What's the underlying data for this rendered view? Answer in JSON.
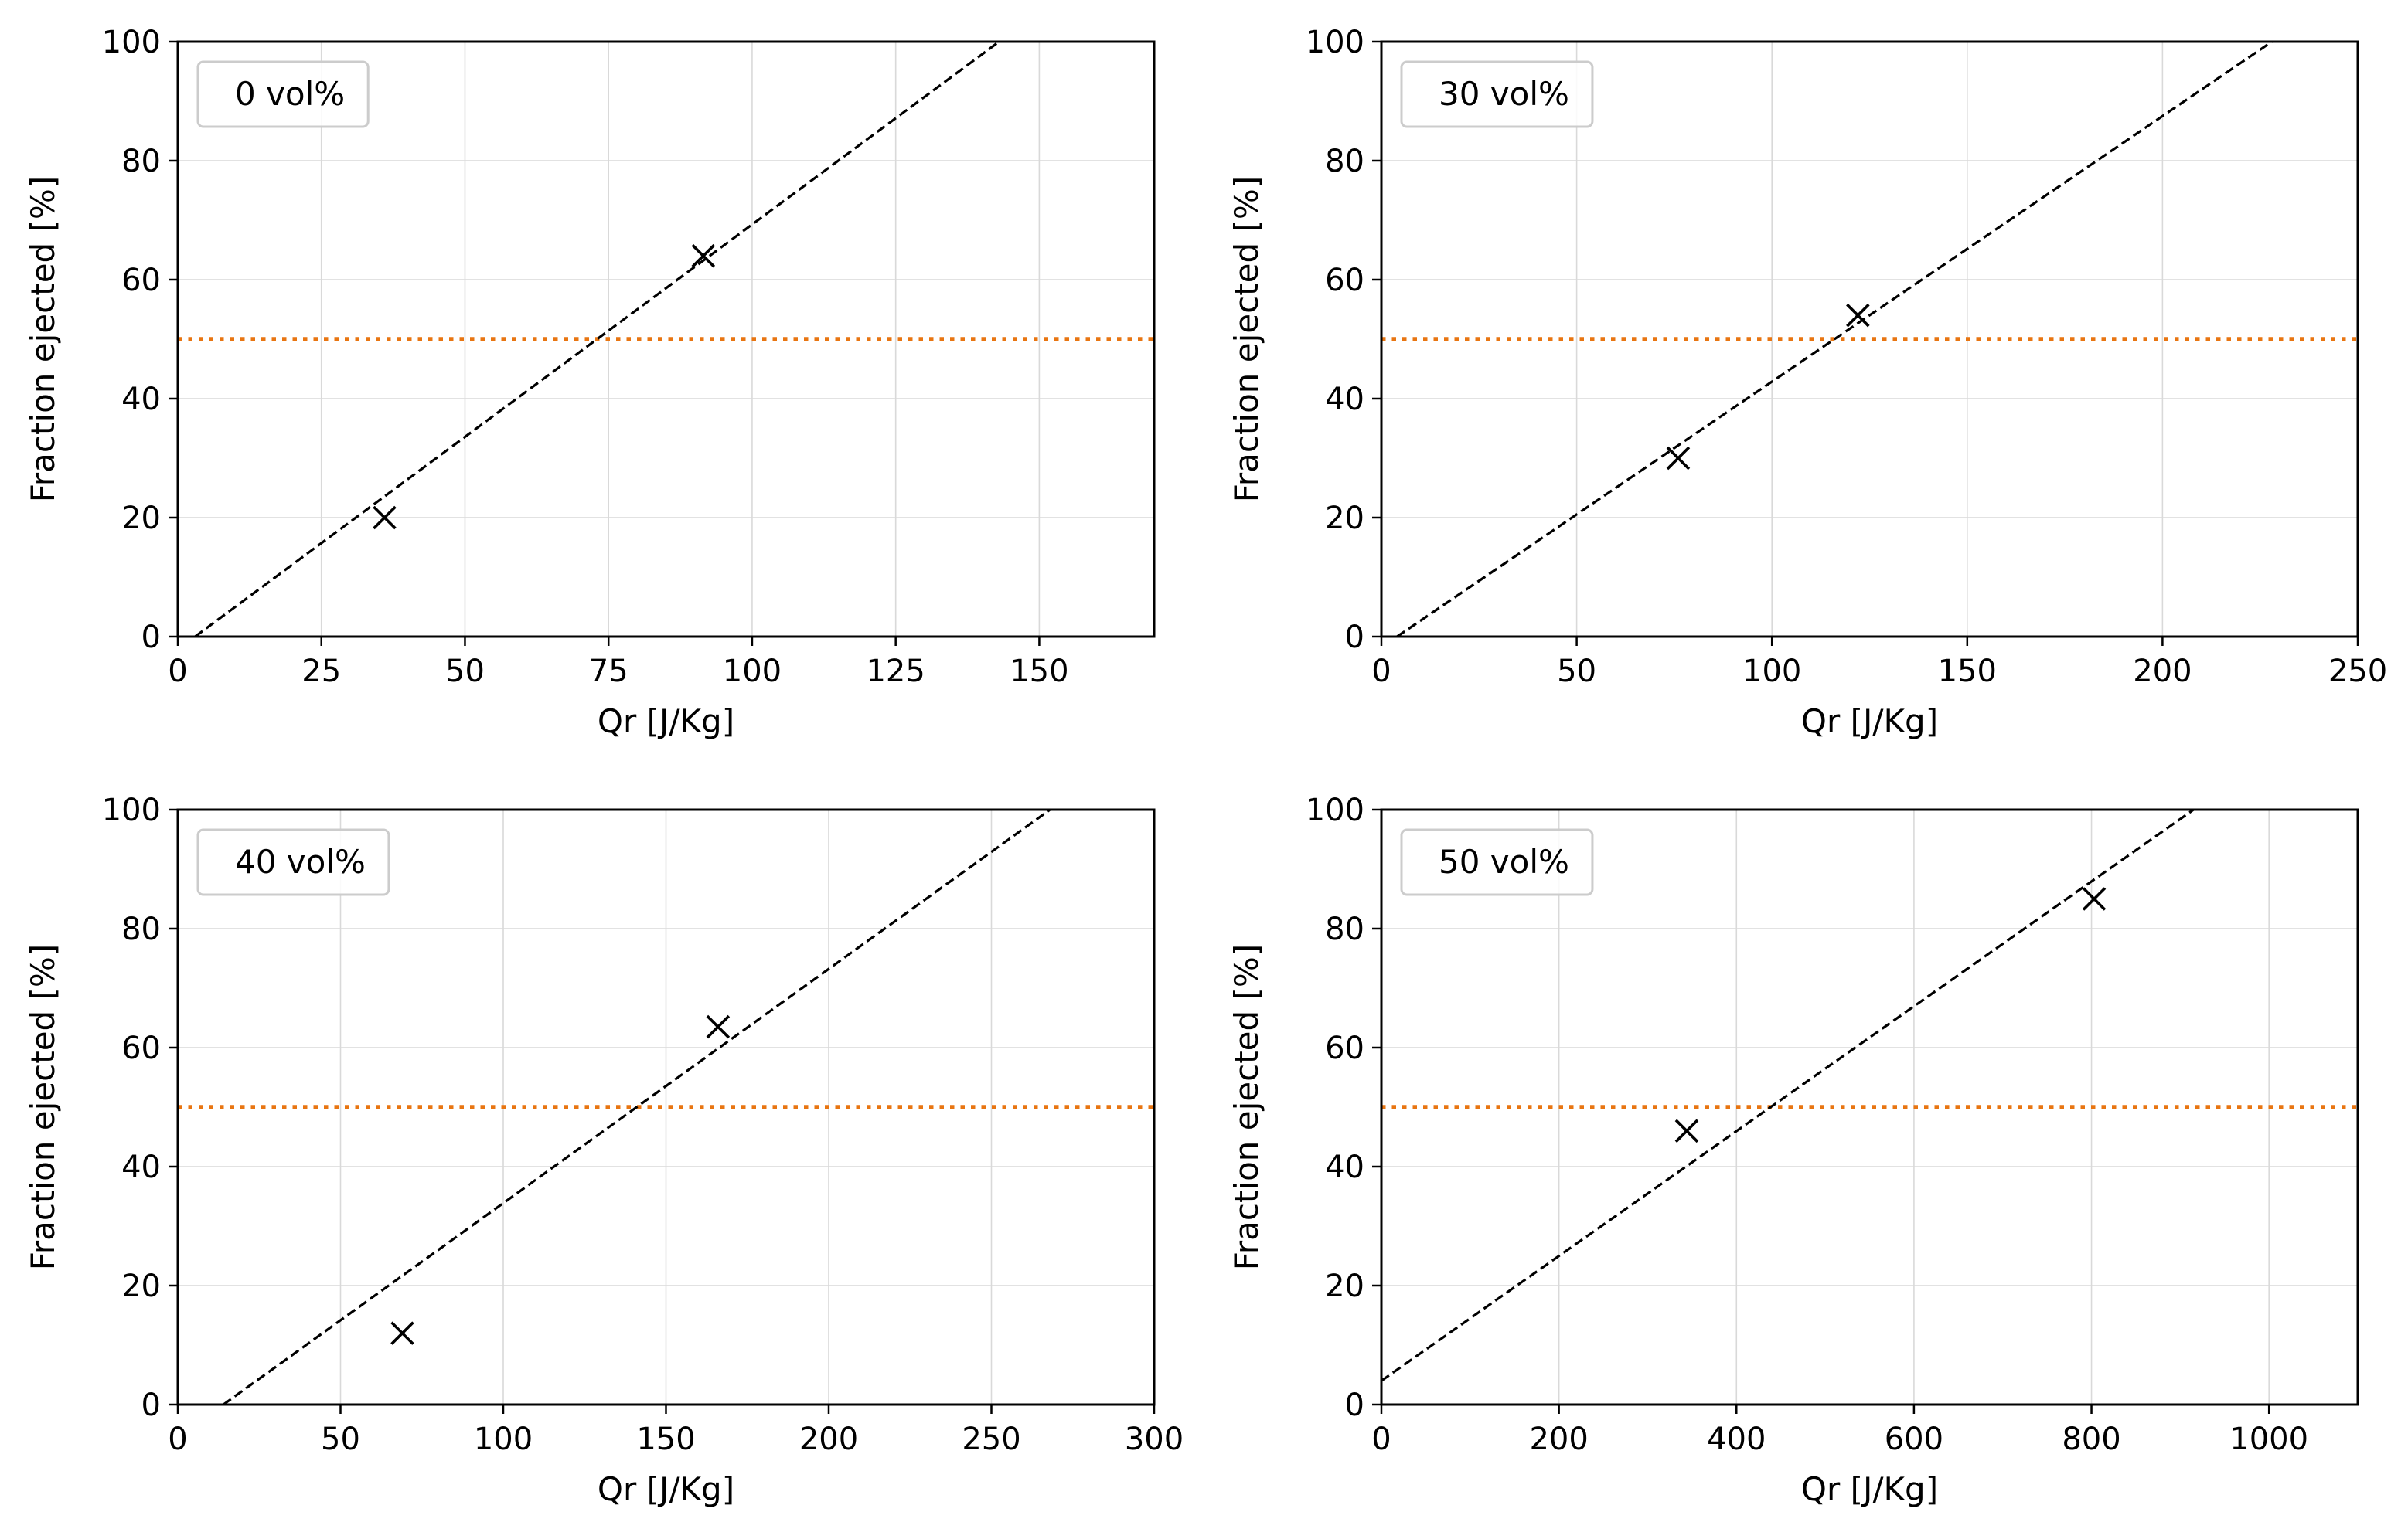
{
  "colors": {
    "fit_line": "#000000",
    "marker": "#000000",
    "threshold": "#e87511",
    "grid": "#d9d9d9",
    "legend_border": "#cccccc",
    "background": "#ffffff"
  },
  "chart_data": [
    {
      "type": "scatter",
      "legend": "0 vol%",
      "xlabel": "Qr [J/Kg]",
      "ylabel": "Fraction ejected [%]",
      "xlim": [
        0,
        170
      ],
      "ylim": [
        0,
        100
      ],
      "xticks": [
        0,
        25,
        50,
        75,
        100,
        125,
        150
      ],
      "yticks": [
        0,
        20,
        40,
        60,
        80,
        100
      ],
      "points": [
        {
          "x": 36,
          "y": 20
        },
        {
          "x": 91.5,
          "y": 64
        }
      ],
      "fit_line": [
        [
          3,
          0
        ],
        [
          143,
          100
        ]
      ],
      "threshold_y": 50,
      "grid": true,
      "legend_position": "top-left"
    },
    {
      "type": "scatter",
      "legend": "30 vol%",
      "xlabel": "Qr [J/Kg]",
      "ylabel": "Fraction ejected [%]",
      "xlim": [
        0,
        250
      ],
      "ylim": [
        0,
        100
      ],
      "xticks": [
        0,
        50,
        100,
        150,
        200,
        250
      ],
      "yticks": [
        0,
        20,
        40,
        60,
        80,
        100
      ],
      "points": [
        {
          "x": 76,
          "y": 30
        },
        {
          "x": 122,
          "y": 54
        }
      ],
      "fit_line": [
        [
          4,
          0
        ],
        [
          228,
          100
        ]
      ],
      "threshold_y": 50,
      "grid": true,
      "legend_position": "top-left"
    },
    {
      "type": "scatter",
      "legend": "40 vol%",
      "xlabel": "Qr [J/Kg]",
      "ylabel": "Fraction ejected [%]",
      "xlim": [
        0,
        300
      ],
      "ylim": [
        0,
        100
      ],
      "xticks": [
        0,
        50,
        100,
        150,
        200,
        250,
        300
      ],
      "yticks": [
        0,
        20,
        40,
        60,
        80,
        100
      ],
      "points": [
        {
          "x": 69,
          "y": 12
        },
        {
          "x": 166,
          "y": 63.5
        }
      ],
      "fit_line": [
        [
          14,
          0
        ],
        [
          268,
          100
        ]
      ],
      "threshold_y": 50,
      "grid": true,
      "legend_position": "top-left"
    },
    {
      "type": "scatter",
      "legend": "50 vol%",
      "xlabel": "Qr [J/Kg]",
      "ylabel": "Fraction ejected [%]",
      "xlim": [
        0,
        1100
      ],
      "ylim": [
        0,
        100
      ],
      "xticks": [
        0,
        200,
        400,
        600,
        800,
        1000
      ],
      "yticks": [
        0,
        20,
        40,
        60,
        80,
        100
      ],
      "points": [
        {
          "x": 344,
          "y": 46
        },
        {
          "x": 803,
          "y": 85
        }
      ],
      "fit_line": [
        [
          0,
          4
        ],
        [
          915,
          100
        ]
      ],
      "threshold_y": 50,
      "grid": true,
      "legend_position": "top-left"
    }
  ]
}
